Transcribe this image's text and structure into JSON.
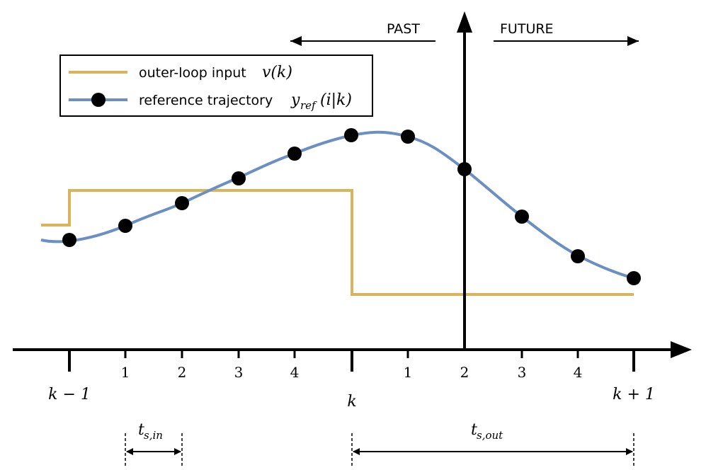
{
  "header": {
    "past_label": "PAST",
    "future_label": "FUTURE"
  },
  "legend": {
    "input_text": "outer-loop input",
    "input_math": "v(k)",
    "ref_text": "reference trajectory",
    "ref_math_base": "y",
    "ref_math_sub": "ref",
    "ref_math_args": "(i|k)"
  },
  "axis": {
    "inner_ticks_past": [
      "1",
      "2",
      "3",
      "4"
    ],
    "inner_ticks_future": [
      "1",
      "2",
      "3",
      "4"
    ],
    "label_k_minus_1": "k − 1",
    "label_k": "k",
    "label_k_plus_1": "k + 1"
  },
  "timing": {
    "ts_in_base": "t",
    "ts_in_sub": "s,in",
    "ts_out_base": "t",
    "ts_out_sub": "s,out"
  },
  "colors": {
    "input_line": "#d9b45a",
    "reference_line": "#6b8fc2",
    "axis": "#000000",
    "marker": "#000000"
  }
}
